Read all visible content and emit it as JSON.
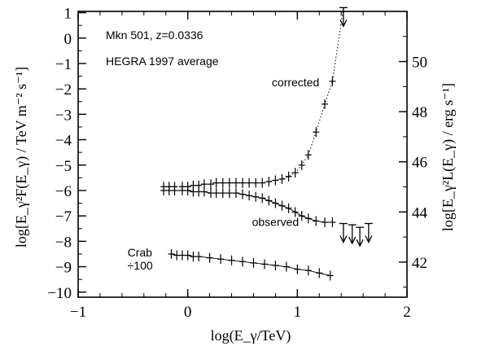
{
  "chart_data": {
    "type": "scatter",
    "annotations": {
      "source": "Mkn 501, z=0.0336",
      "dataset": "HEGRA 1997 average"
    },
    "xlabel": "log(E_γ/TeV)",
    "ylabel": "log[E_γ²F(E_γ) / TeV m⁻² s⁻¹]",
    "y2label": "log[E_γ²L(E_γ) / erg s⁻¹]",
    "xlim": [
      -1,
      2
    ],
    "ylim": [
      -10.2,
      1.05
    ],
    "y2lim": [
      40.6,
      52.0
    ],
    "x_ticks": [
      -1,
      0,
      1,
      2
    ],
    "x_tick_labels": [
      "−1",
      "0",
      "1",
      "2"
    ],
    "y_ticks": [
      1,
      0,
      -1,
      -2,
      -3,
      -4,
      -5,
      -6,
      -7,
      -8,
      -9,
      -10
    ],
    "y_tick_labels": [
      "1",
      "0",
      "−1",
      "−2",
      "−3",
      "−4",
      "−5",
      "−6",
      "−7",
      "−8",
      "−9",
      "−10"
    ],
    "y2_ticks": [
      42,
      44,
      46,
      48,
      50
    ],
    "y2_tick_labels": [
      "42",
      "44",
      "46",
      "48",
      "50"
    ],
    "grid": false,
    "series": [
      {
        "name": "corrected",
        "style": "dotted-curve",
        "label_at": [
          1.2,
          -1.9
        ],
        "x": [
          -0.22,
          -0.17,
          -0.12,
          -0.05,
          0.0,
          0.05,
          0.1,
          0.15,
          0.21,
          0.26,
          0.32,
          0.38,
          0.44,
          0.5,
          0.56,
          0.62,
          0.68,
          0.74,
          0.8,
          0.86,
          0.92,
          0.98,
          1.04,
          1.1,
          1.17,
          1.25,
          1.32
        ],
        "y": [
          -5.85,
          -5.85,
          -5.85,
          -5.85,
          -5.85,
          -5.8,
          -5.8,
          -5.75,
          -5.75,
          -5.7,
          -5.7,
          -5.7,
          -5.7,
          -5.7,
          -5.7,
          -5.7,
          -5.7,
          -5.65,
          -5.6,
          -5.55,
          -5.45,
          -5.3,
          -5.0,
          -4.6,
          -3.7,
          -2.6,
          -1.7
        ],
        "upper_limits": [
          {
            "x": 1.42,
            "y": 1.2
          }
        ]
      },
      {
        "name": "observed",
        "style": "points",
        "label_at": [
          0.8,
          -7.4
        ],
        "x": [
          -0.22,
          -0.17,
          -0.12,
          -0.05,
          0.0,
          0.05,
          0.1,
          0.15,
          0.21,
          0.26,
          0.32,
          0.38,
          0.44,
          0.5,
          0.56,
          0.62,
          0.68,
          0.74,
          0.8,
          0.86,
          0.92,
          0.98,
          1.04,
          1.1,
          1.17,
          1.25,
          1.32
        ],
        "y": [
          -6.0,
          -6.0,
          -6.0,
          -6.0,
          -6.0,
          -6.05,
          -6.05,
          -6.05,
          -6.1,
          -6.1,
          -6.1,
          -6.1,
          -6.1,
          -6.15,
          -6.2,
          -6.25,
          -6.3,
          -6.4,
          -6.5,
          -6.6,
          -6.7,
          -6.85,
          -7.0,
          -7.1,
          -7.2,
          -7.25,
          -7.25
        ],
        "upper_limits": [
          {
            "x": 1.42,
            "y": -7.3
          },
          {
            "x": 1.5,
            "y": -7.35
          },
          {
            "x": 1.57,
            "y": -7.45
          },
          {
            "x": 1.65,
            "y": -7.3
          }
        ]
      },
      {
        "name": "Crab ÷100",
        "style": "points",
        "label_at": [
          -0.55,
          -8.6
        ],
        "x": [
          -0.15,
          -0.1,
          -0.05,
          0.0,
          0.05,
          0.1,
          0.2,
          0.3,
          0.4,
          0.5,
          0.6,
          0.7,
          0.8,
          0.9,
          1.0,
          1.1,
          1.2,
          1.3
        ],
        "y": [
          -8.5,
          -8.55,
          -8.55,
          -8.55,
          -8.6,
          -8.6,
          -8.65,
          -8.7,
          -8.75,
          -8.8,
          -8.85,
          -8.9,
          -8.95,
          -9.0,
          -9.1,
          -9.15,
          -9.25,
          -9.35
        ]
      }
    ]
  }
}
